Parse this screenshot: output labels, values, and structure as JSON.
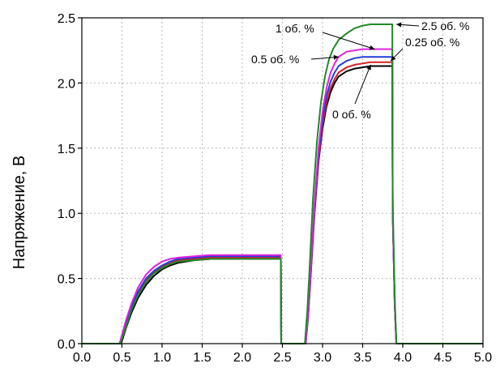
{
  "chart_data": {
    "type": "line",
    "title": "",
    "xlabel": "",
    "ylabel": "Напряжение, В",
    "xlim": [
      0.0,
      5.0
    ],
    "ylim": [
      0.0,
      2.5
    ],
    "xticks": [
      "0.0",
      "0.5",
      "1.0",
      "1.5",
      "2.0",
      "2.5",
      "3.0",
      "3.5",
      "4.0",
      "4.5",
      "5.0"
    ],
    "yticks": [
      "0.0",
      "0.5",
      "1.0",
      "1.5",
      "2.0",
      "2.5"
    ],
    "grid": true,
    "series": [
      {
        "name": "0 об. %",
        "color": "#000000",
        "x": [
          0.0,
          0.49,
          0.55,
          0.62,
          0.7,
          0.8,
          0.9,
          1.0,
          1.1,
          1.2,
          1.4,
          1.6,
          1.8,
          2.0,
          2.48,
          2.485,
          2.79,
          2.82,
          2.85,
          2.9,
          2.95,
          3.0,
          3.05,
          3.1,
          3.15,
          3.2,
          3.3,
          3.4,
          3.5,
          3.6,
          3.7,
          3.87,
          3.875,
          3.9,
          3.92,
          5.0
        ],
        "y": [
          0.0,
          0.0,
          0.12,
          0.24,
          0.35,
          0.45,
          0.52,
          0.57,
          0.6,
          0.62,
          0.64,
          0.65,
          0.65,
          0.65,
          0.65,
          0.0,
          0.0,
          0.2,
          0.5,
          1.0,
          1.4,
          1.65,
          1.82,
          1.93,
          2.0,
          2.05,
          2.09,
          2.11,
          2.12,
          2.13,
          2.13,
          2.13,
          1.0,
          0.3,
          0.0,
          0.0
        ]
      },
      {
        "name": "0.25 об. %",
        "color": "#d42020",
        "x": [
          0.0,
          0.48,
          0.55,
          0.62,
          0.7,
          0.8,
          0.9,
          1.0,
          1.1,
          1.2,
          1.4,
          1.6,
          1.8,
          2.0,
          2.48,
          2.485,
          2.79,
          2.82,
          2.85,
          2.9,
          2.95,
          3.0,
          3.05,
          3.1,
          3.15,
          3.2,
          3.3,
          3.4,
          3.5,
          3.6,
          3.7,
          3.87,
          3.875,
          3.9,
          3.92,
          5.0
        ],
        "y": [
          0.0,
          0.0,
          0.14,
          0.27,
          0.38,
          0.48,
          0.55,
          0.59,
          0.62,
          0.64,
          0.65,
          0.66,
          0.66,
          0.66,
          0.66,
          0.0,
          0.0,
          0.21,
          0.52,
          1.02,
          1.42,
          1.68,
          1.85,
          1.96,
          2.03,
          2.08,
          2.12,
          2.14,
          2.15,
          2.16,
          2.16,
          2.16,
          1.0,
          0.3,
          0.0,
          0.0
        ]
      },
      {
        "name": "0.5 об. %",
        "color": "#1f3fd6",
        "x": [
          0.0,
          0.48,
          0.55,
          0.62,
          0.7,
          0.8,
          0.9,
          1.0,
          1.1,
          1.2,
          1.4,
          1.6,
          1.8,
          2.0,
          2.48,
          2.485,
          2.79,
          2.82,
          2.85,
          2.9,
          2.95,
          3.0,
          3.05,
          3.1,
          3.15,
          3.2,
          3.3,
          3.4,
          3.5,
          3.6,
          3.7,
          3.87,
          3.875,
          3.9,
          3.92,
          5.0
        ],
        "y": [
          0.0,
          0.0,
          0.15,
          0.28,
          0.4,
          0.5,
          0.56,
          0.6,
          0.63,
          0.65,
          0.66,
          0.67,
          0.67,
          0.67,
          0.67,
          0.0,
          0.0,
          0.22,
          0.54,
          1.05,
          1.45,
          1.72,
          1.9,
          2.01,
          2.08,
          2.13,
          2.17,
          2.19,
          2.2,
          2.2,
          2.2,
          2.2,
          1.0,
          0.3,
          0.0,
          0.0
        ]
      },
      {
        "name": "1 об. %",
        "color": "#e020e0",
        "x": [
          0.0,
          0.47,
          0.55,
          0.62,
          0.7,
          0.8,
          0.9,
          1.0,
          1.1,
          1.2,
          1.4,
          1.6,
          1.8,
          2.0,
          2.48,
          2.485,
          2.79,
          2.82,
          2.85,
          2.9,
          2.95,
          3.0,
          3.05,
          3.1,
          3.15,
          3.2,
          3.3,
          3.4,
          3.5,
          3.6,
          3.7,
          3.87,
          3.875,
          3.9,
          3.92,
          5.0
        ],
        "y": [
          0.0,
          0.0,
          0.18,
          0.31,
          0.43,
          0.53,
          0.59,
          0.63,
          0.65,
          0.66,
          0.67,
          0.68,
          0.68,
          0.68,
          0.68,
          0.0,
          0.0,
          0.23,
          0.56,
          1.08,
          1.5,
          1.78,
          1.96,
          2.08,
          2.15,
          2.2,
          2.24,
          2.25,
          2.26,
          2.26,
          2.26,
          2.26,
          1.0,
          0.3,
          0.0,
          0.0
        ]
      },
      {
        "name": "2.5 об. %",
        "color": "#1f8a2a",
        "x": [
          0.0,
          0.48,
          0.55,
          0.62,
          0.7,
          0.8,
          0.9,
          1.0,
          1.1,
          1.2,
          1.4,
          1.6,
          1.8,
          2.0,
          2.48,
          2.485,
          2.78,
          2.81,
          2.84,
          2.88,
          2.93,
          2.98,
          3.03,
          3.08,
          3.13,
          3.2,
          3.3,
          3.4,
          3.5,
          3.6,
          3.7,
          3.87,
          3.875,
          3.9,
          3.92,
          5.0
        ],
        "y": [
          0.0,
          0.0,
          0.13,
          0.26,
          0.37,
          0.47,
          0.54,
          0.58,
          0.61,
          0.63,
          0.64,
          0.65,
          0.65,
          0.65,
          0.65,
          0.0,
          0.0,
          0.25,
          0.6,
          1.1,
          1.55,
          1.85,
          2.05,
          2.18,
          2.26,
          2.33,
          2.38,
          2.42,
          2.44,
          2.45,
          2.45,
          2.45,
          1.1,
          0.35,
          0.0,
          0.0
        ]
      }
    ],
    "annotations": [
      {
        "text": "1 об. %",
        "series": "1 об. %",
        "x": 3.65,
        "y": 2.26
      },
      {
        "text": "0.5 об. %",
        "series": "0.5 об. %",
        "x": 3.2,
        "y": 2.2
      },
      {
        "text": "2.5 об. %",
        "series": "2.5 об. %",
        "x": 3.92,
        "y": 2.45
      },
      {
        "text": "0.25 об. %",
        "series": "0.25 об. %",
        "x": 3.85,
        "y": 2.17
      },
      {
        "text": "0 об. %",
        "series": "0 об. %",
        "x": 3.6,
        "y": 2.14
      }
    ]
  }
}
